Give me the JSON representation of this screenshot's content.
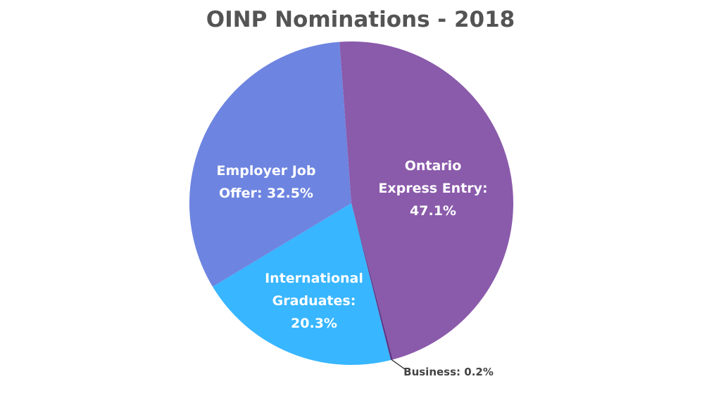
{
  "chart_data": {
    "type": "pie",
    "title": "OINP Nominations - 2018",
    "values": [
      47.1,
      0.2,
      20.3,
      32.5
    ],
    "value_labels": [
      "Ontario\nExpress Entry:\n47.1%",
      "Business: 0.2%",
      "International\nGraduates:\n20.3%",
      "Employer Job\nOffer: 32.5%"
    ],
    "colors": [
      "#8a5aab",
      "#5e3585",
      "#38b6ff",
      "#6d84e0"
    ]
  }
}
